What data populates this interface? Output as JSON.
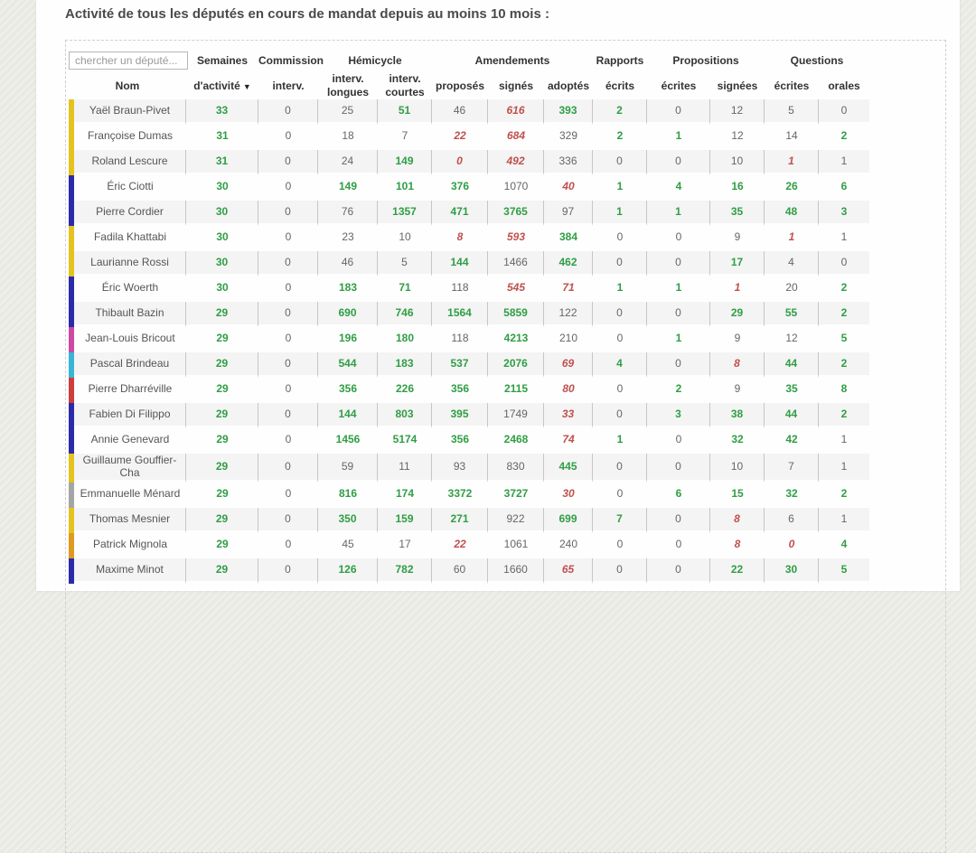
{
  "page": {
    "title": "Activité de tous les députés en cours de mandat depuis au moins 10 mois :"
  },
  "search": {
    "placeholder": "chercher un député..."
  },
  "table": {
    "groups": [
      {
        "label": "",
        "span": 2,
        "search": true
      },
      {
        "label": "Semaines",
        "span": 1
      },
      {
        "label": "Commission",
        "span": 1
      },
      {
        "label": "Hémicycle",
        "span": 2
      },
      {
        "label": "Amendements",
        "span": 3
      },
      {
        "label": "Rapports",
        "span": 1
      },
      {
        "label": "Propositions",
        "span": 2
      },
      {
        "label": "Questions",
        "span": 2
      }
    ],
    "columns": [
      "Nom",
      "d'activité",
      "interv.",
      "interv. longues",
      "interv. courtes",
      "proposés",
      "signés",
      "adoptés",
      "écrits",
      "écrites",
      "signées",
      "écrites",
      "orales"
    ],
    "column_keys": [
      "nom",
      "semaines-activite",
      "commission-interv",
      "hemicycle-interv-longues",
      "hemicycle-interv-courtes",
      "amendements-proposes",
      "amendements-signes",
      "amendements-adoptes",
      "rapports-ecrits",
      "propositions-ecrites",
      "propositions-signees",
      "questions-ecrites",
      "questions-orales"
    ],
    "sort": {
      "column": "d'activité",
      "indicator": "▼"
    },
    "value_colors": {
      "good": "#2f9e44",
      "bad": "#c0504d",
      "normal": "#666666"
    },
    "party_bar_colors": {
      "yellow": "#e5c31f",
      "dark_blue": "#2b2baa",
      "pink": "#cc4aa4",
      "cyan": "#38b6d8",
      "red": "#cf3d3d",
      "gray": "#a5a5a5",
      "orange": "#df9a1f"
    },
    "rows": [
      {
        "name": "Yaël Braun-Pivet",
        "party_color": "yellow",
        "values": [
          "33",
          "0",
          "25",
          "51",
          "46",
          "616",
          "393",
          "2",
          "0",
          "12",
          "5",
          "0"
        ],
        "styles": [
          "g",
          "n",
          "n",
          "g",
          "n",
          "r",
          "g",
          "g",
          "n",
          "n",
          "n",
          "n"
        ]
      },
      {
        "name": "Françoise Dumas",
        "party_color": "yellow",
        "values": [
          "31",
          "0",
          "18",
          "7",
          "22",
          "684",
          "329",
          "2",
          "1",
          "12",
          "14",
          "2"
        ],
        "styles": [
          "g",
          "n",
          "n",
          "n",
          "r",
          "r",
          "n",
          "g",
          "g",
          "n",
          "n",
          "g"
        ]
      },
      {
        "name": "Roland Lescure",
        "party_color": "yellow",
        "values": [
          "31",
          "0",
          "24",
          "149",
          "0",
          "492",
          "336",
          "0",
          "0",
          "10",
          "1",
          "1"
        ],
        "styles": [
          "g",
          "n",
          "n",
          "g",
          "r",
          "r",
          "n",
          "n",
          "n",
          "n",
          "r",
          "n"
        ]
      },
      {
        "name": "Éric Ciotti",
        "party_color": "dark_blue",
        "values": [
          "30",
          "0",
          "149",
          "101",
          "376",
          "1070",
          "40",
          "1",
          "4",
          "16",
          "26",
          "6"
        ],
        "styles": [
          "g",
          "n",
          "g",
          "g",
          "g",
          "n",
          "r",
          "g",
          "g",
          "g",
          "g",
          "g"
        ]
      },
      {
        "name": "Pierre Cordier",
        "party_color": "dark_blue",
        "values": [
          "30",
          "0",
          "76",
          "1357",
          "471",
          "3765",
          "97",
          "1",
          "1",
          "35",
          "48",
          "3"
        ],
        "styles": [
          "g",
          "n",
          "n",
          "g",
          "g",
          "g",
          "n",
          "g",
          "g",
          "g",
          "g",
          "g"
        ]
      },
      {
        "name": "Fadila Khattabi",
        "party_color": "yellow",
        "values": [
          "30",
          "0",
          "23",
          "10",
          "8",
          "593",
          "384",
          "0",
          "0",
          "9",
          "1",
          "1"
        ],
        "styles": [
          "g",
          "n",
          "n",
          "n",
          "r",
          "r",
          "g",
          "n",
          "n",
          "n",
          "r",
          "n"
        ]
      },
      {
        "name": "Laurianne Rossi",
        "party_color": "yellow",
        "values": [
          "30",
          "0",
          "46",
          "5",
          "144",
          "1466",
          "462",
          "0",
          "0",
          "17",
          "4",
          "0"
        ],
        "styles": [
          "g",
          "n",
          "n",
          "n",
          "g",
          "n",
          "g",
          "n",
          "n",
          "g",
          "n",
          "n"
        ]
      },
      {
        "name": "Éric Woerth",
        "party_color": "dark_blue",
        "values": [
          "30",
          "0",
          "183",
          "71",
          "118",
          "545",
          "71",
          "1",
          "1",
          "1",
          "20",
          "2"
        ],
        "styles": [
          "g",
          "n",
          "g",
          "g",
          "n",
          "r",
          "r",
          "g",
          "g",
          "r",
          "n",
          "g"
        ]
      },
      {
        "name": "Thibault Bazin",
        "party_color": "dark_blue",
        "values": [
          "29",
          "0",
          "690",
          "746",
          "1564",
          "5859",
          "122",
          "0",
          "0",
          "29",
          "55",
          "2"
        ],
        "styles": [
          "g",
          "n",
          "g",
          "g",
          "g",
          "g",
          "n",
          "n",
          "n",
          "g",
          "g",
          "g"
        ]
      },
      {
        "name": "Jean-Louis Bricout",
        "party_color": "pink",
        "values": [
          "29",
          "0",
          "196",
          "180",
          "118",
          "4213",
          "210",
          "0",
          "1",
          "9",
          "12",
          "5"
        ],
        "styles": [
          "g",
          "n",
          "g",
          "g",
          "n",
          "g",
          "n",
          "n",
          "g",
          "n",
          "n",
          "g"
        ]
      },
      {
        "name": "Pascal Brindeau",
        "party_color": "cyan",
        "values": [
          "29",
          "0",
          "544",
          "183",
          "537",
          "2076",
          "69",
          "4",
          "0",
          "8",
          "44",
          "2"
        ],
        "styles": [
          "g",
          "n",
          "g",
          "g",
          "g",
          "g",
          "r",
          "g",
          "n",
          "r",
          "g",
          "g"
        ]
      },
      {
        "name": "Pierre Dharréville",
        "party_color": "red",
        "values": [
          "29",
          "0",
          "356",
          "226",
          "356",
          "2115",
          "80",
          "0",
          "2",
          "9",
          "35",
          "8"
        ],
        "styles": [
          "g",
          "n",
          "g",
          "g",
          "g",
          "g",
          "r",
          "n",
          "g",
          "n",
          "g",
          "g"
        ]
      },
      {
        "name": "Fabien Di Filippo",
        "party_color": "dark_blue",
        "values": [
          "29",
          "0",
          "144",
          "803",
          "395",
          "1749",
          "33",
          "0",
          "3",
          "38",
          "44",
          "2"
        ],
        "styles": [
          "g",
          "n",
          "g",
          "g",
          "g",
          "n",
          "r",
          "n",
          "g",
          "g",
          "g",
          "g"
        ]
      },
      {
        "name": "Annie Genevard",
        "party_color": "dark_blue",
        "values": [
          "29",
          "0",
          "1456",
          "5174",
          "356",
          "2468",
          "74",
          "1",
          "0",
          "32",
          "42",
          "1"
        ],
        "styles": [
          "g",
          "n",
          "g",
          "g",
          "g",
          "g",
          "r",
          "g",
          "n",
          "g",
          "g",
          "n"
        ]
      },
      {
        "name": "Guillaume Gouffier-Cha",
        "party_color": "yellow",
        "values": [
          "29",
          "0",
          "59",
          "11",
          "93",
          "830",
          "445",
          "0",
          "0",
          "10",
          "7",
          "1"
        ],
        "styles": [
          "g",
          "n",
          "n",
          "n",
          "n",
          "n",
          "g",
          "n",
          "n",
          "n",
          "n",
          "n"
        ]
      },
      {
        "name": "Emmanuelle Ménard",
        "party_color": "gray",
        "values": [
          "29",
          "0",
          "816",
          "174",
          "3372",
          "3727",
          "30",
          "0",
          "6",
          "15",
          "32",
          "2"
        ],
        "styles": [
          "g",
          "n",
          "g",
          "g",
          "g",
          "g",
          "r",
          "n",
          "g",
          "g",
          "g",
          "g"
        ]
      },
      {
        "name": "Thomas Mesnier",
        "party_color": "yellow",
        "values": [
          "29",
          "0",
          "350",
          "159",
          "271",
          "922",
          "699",
          "7",
          "0",
          "8",
          "6",
          "1"
        ],
        "styles": [
          "g",
          "n",
          "g",
          "g",
          "g",
          "n",
          "g",
          "g",
          "n",
          "r",
          "n",
          "n"
        ]
      },
      {
        "name": "Patrick Mignola",
        "party_color": "orange",
        "values": [
          "29",
          "0",
          "45",
          "17",
          "22",
          "1061",
          "240",
          "0",
          "0",
          "8",
          "0",
          "4"
        ],
        "styles": [
          "g",
          "n",
          "n",
          "n",
          "r",
          "n",
          "n",
          "n",
          "n",
          "r",
          "r",
          "g"
        ]
      },
      {
        "name": "Maxime Minot",
        "party_color": "dark_blue",
        "values": [
          "29",
          "0",
          "126",
          "782",
          "60",
          "1660",
          "65",
          "0",
          "0",
          "22",
          "30",
          "5"
        ],
        "styles": [
          "g",
          "n",
          "g",
          "g",
          "n",
          "n",
          "r",
          "n",
          "n",
          "g",
          "g",
          "g"
        ]
      }
    ]
  }
}
